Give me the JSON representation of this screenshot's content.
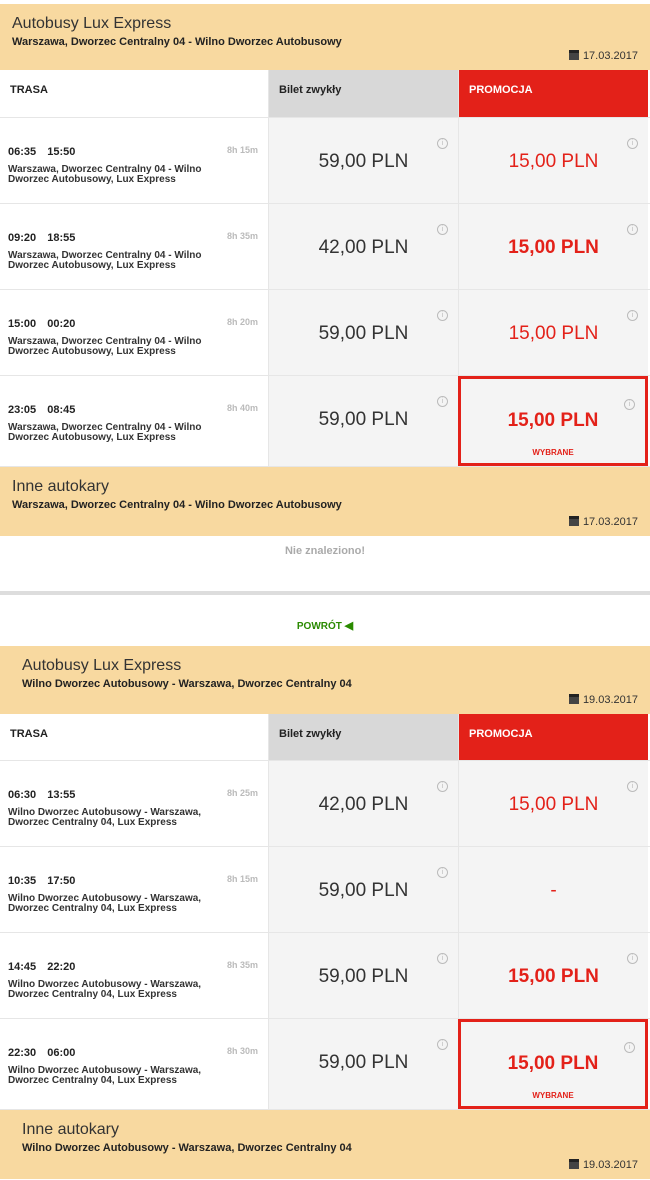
{
  "sections": [
    {
      "title": "Autobusy Lux Express",
      "route": "Warszawa, Dworzec Centralny 04 - Wilno Dworzec Autobusowy",
      "date": "17.03.2017",
      "columns": {
        "route": "TRASA",
        "regular": "Bilet zwykły",
        "promo": "PROMOCJA"
      },
      "rows": [
        {
          "dep": "06:35",
          "arr": "15:50",
          "duration": "8h 15m",
          "desc": "Warszawa, Dworzec Centralny 04 - Wilno Dworzec Autobusowy, Lux Express",
          "regular": "59,00 PLN",
          "promo": "15,00 PLN",
          "bold": false,
          "selected": false
        },
        {
          "dep": "09:20",
          "arr": "18:55",
          "duration": "8h 35m",
          "desc": "Warszawa, Dworzec Centralny 04 - Wilno Dworzec Autobusowy, Lux Express",
          "regular": "42,00 PLN",
          "promo": "15,00 PLN",
          "bold": true,
          "selected": false
        },
        {
          "dep": "15:00",
          "arr": "00:20",
          "duration": "8h 20m",
          "desc": "Warszawa, Dworzec Centralny 04 - Wilno Dworzec Autobusowy, Lux Express",
          "regular": "59,00 PLN",
          "promo": "15,00 PLN",
          "bold": false,
          "selected": false
        },
        {
          "dep": "23:05",
          "arr": "08:45",
          "duration": "8h 40m",
          "desc": "Warszawa, Dworzec Centralny 04 - Wilno Dworzec Autobusowy, Lux Express",
          "regular": "59,00 PLN",
          "promo": "15,00 PLN",
          "bold": true,
          "selected": true
        }
      ],
      "other": {
        "title": "Inne autokary",
        "route": "Warszawa, Dworzec Centralny 04 - Wilno Dworzec Autobusowy",
        "date": "17.03.2017",
        "empty": "Nie znaleziono!"
      }
    },
    {
      "title": "Autobusy Lux Express",
      "route": "Wilno Dworzec Autobusowy - Warszawa, Dworzec Centralny 04",
      "date": "19.03.2017",
      "columns": {
        "route": "TRASA",
        "regular": "Bilet zwykły",
        "promo": "PROMOCJA"
      },
      "rows": [
        {
          "dep": "06:30",
          "arr": "13:55",
          "duration": "8h 25m",
          "desc": "Wilno Dworzec Autobusowy - Warszawa, Dworzec Centralny 04, Lux Express",
          "regular": "42,00 PLN",
          "promo": "15,00 PLN",
          "bold": false,
          "selected": false
        },
        {
          "dep": "10:35",
          "arr": "17:50",
          "duration": "8h 15m",
          "desc": "Wilno Dworzec Autobusowy - Warszawa, Dworzec Centralny 04, Lux Express",
          "regular": "59,00 PLN",
          "promo": "-",
          "bold": false,
          "selected": false
        },
        {
          "dep": "14:45",
          "arr": "22:20",
          "duration": "8h 35m",
          "desc": "Wilno Dworzec Autobusowy - Warszawa, Dworzec Centralny 04, Lux Express",
          "regular": "59,00 PLN",
          "promo": "15,00 PLN",
          "bold": true,
          "selected": false
        },
        {
          "dep": "22:30",
          "arr": "06:00",
          "duration": "8h 30m",
          "desc": "Wilno Dworzec Autobusowy - Warszawa, Dworzec Centralny 04, Lux Express",
          "regular": "59,00 PLN",
          "promo": "15,00 PLN",
          "bold": true,
          "selected": true
        }
      ],
      "other": {
        "title": "Inne autokary",
        "route": "Wilno Dworzec Autobusowy - Warszawa, Dworzec Centralny 04",
        "date": "19.03.2017"
      }
    }
  ],
  "selected_label": "WYBRANE",
  "back_label": "POWRÓT",
  "colors": {
    "header_bg": "#f8d9a0",
    "promo_red": "#e32119",
    "back_green": "#2a8a00"
  }
}
